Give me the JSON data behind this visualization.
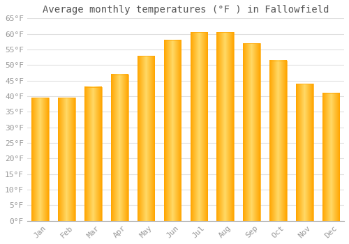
{
  "title": "Average monthly temperatures (°F ) in Fallowfield",
  "months": [
    "Jan",
    "Feb",
    "Mar",
    "Apr",
    "May",
    "Jun",
    "Jul",
    "Aug",
    "Sep",
    "Oct",
    "Nov",
    "Dec"
  ],
  "values": [
    39.5,
    39.5,
    43,
    47,
    53,
    58,
    60.5,
    60.5,
    57,
    51.5,
    44,
    41
  ],
  "bar_color_center": "#FFD966",
  "bar_color_edge": "#FFA500",
  "ylim": [
    0,
    65
  ],
  "yticks": [
    0,
    5,
    10,
    15,
    20,
    25,
    30,
    35,
    40,
    45,
    50,
    55,
    60,
    65
  ],
  "background_color": "#ffffff",
  "grid_color": "#e0e0e0",
  "title_fontsize": 10,
  "tick_fontsize": 8,
  "tick_color": "#999999"
}
